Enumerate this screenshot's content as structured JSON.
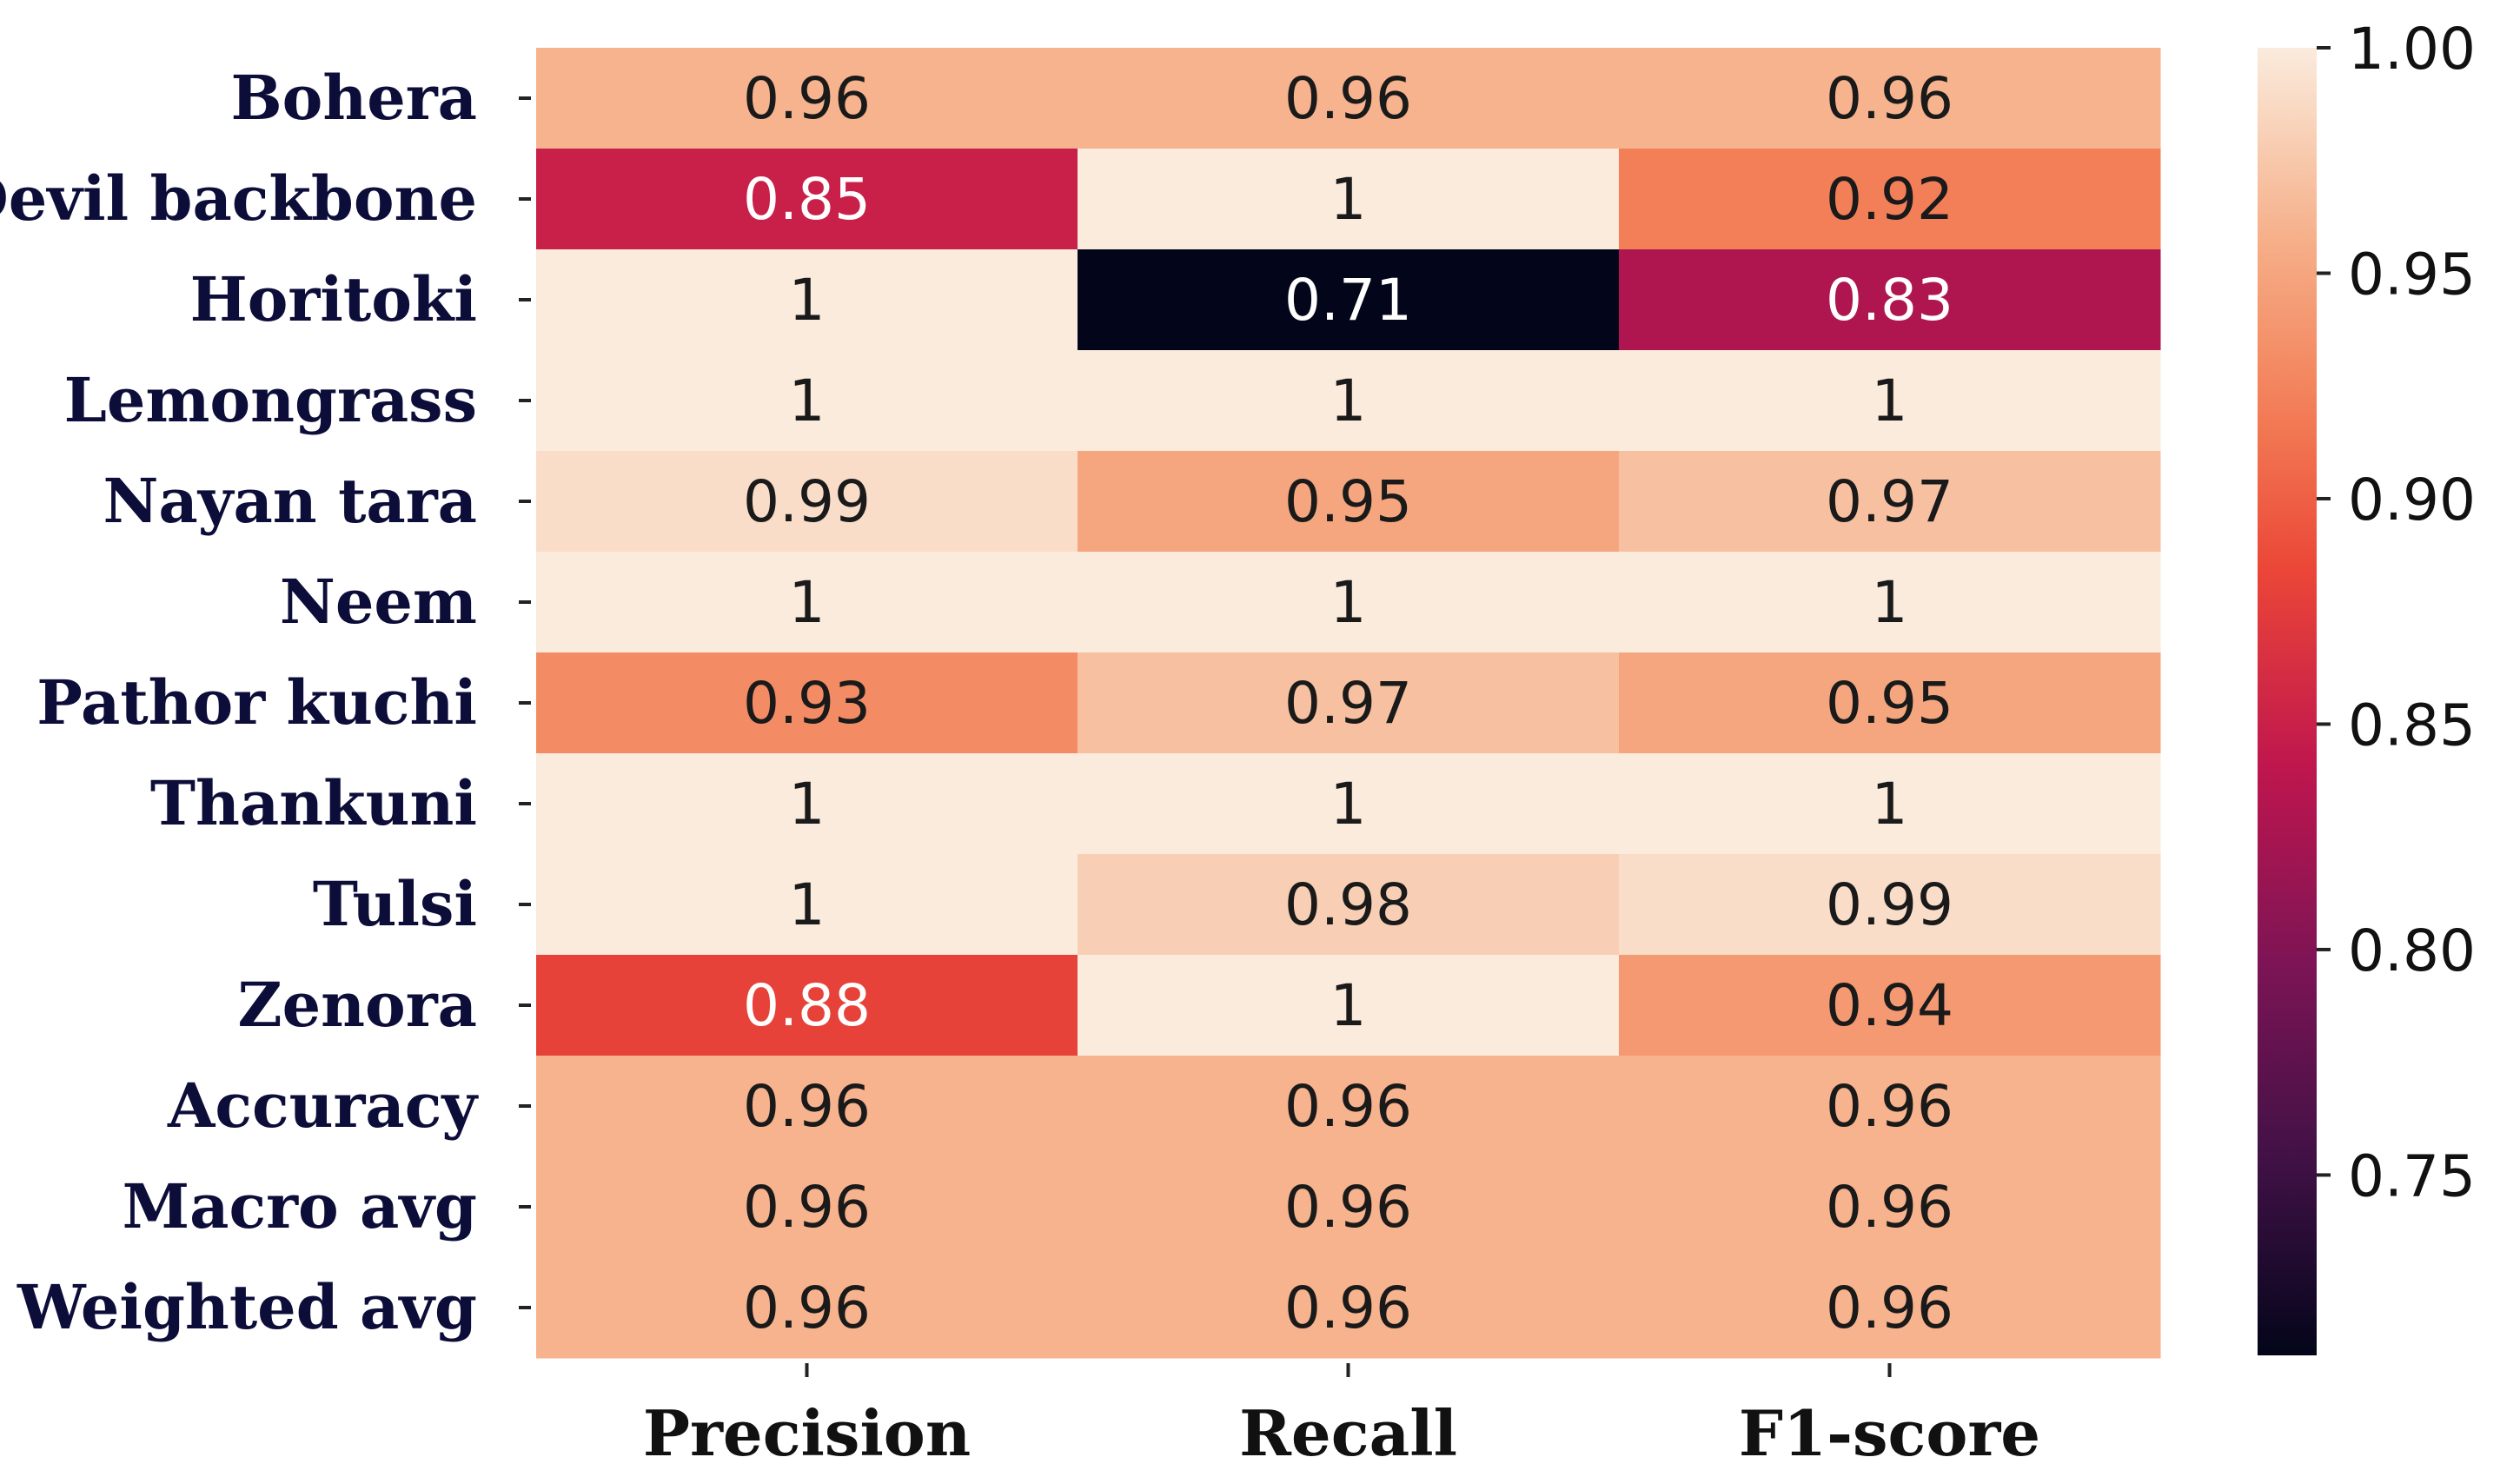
{
  "chart_data": {
    "type": "heatmap",
    "title": "",
    "xlabel": "",
    "ylabel": "",
    "rows": [
      "Bohera",
      "Devil backbone",
      "Horitoki",
      "Lemongrass",
      "Nayan tara",
      "Neem",
      "Pathor kuchi",
      "Thankuni",
      "Tulsi",
      "Zenora",
      "Accuracy",
      "Macro avg",
      "Weighted avg"
    ],
    "columns": [
      "Precision",
      "Recall",
      "F1-score"
    ],
    "values": [
      [
        0.96,
        0.96,
        0.96
      ],
      [
        0.85,
        1,
        0.92
      ],
      [
        1,
        0.71,
        0.83
      ],
      [
        1,
        1,
        1
      ],
      [
        0.99,
        0.95,
        0.97
      ],
      [
        1,
        1,
        1
      ],
      [
        0.93,
        0.97,
        0.95
      ],
      [
        1,
        1,
        1
      ],
      [
        1,
        0.98,
        0.99
      ],
      [
        0.88,
        1,
        0.94
      ],
      [
        0.96,
        0.96,
        0.96
      ],
      [
        0.96,
        0.96,
        0.96
      ],
      [
        0.96,
        0.96,
        0.96
      ]
    ],
    "labels": [
      [
        "0.96",
        "0.96",
        "0.96"
      ],
      [
        "0.85",
        "1",
        "0.92"
      ],
      [
        "1",
        "0.71",
        "0.83"
      ],
      [
        "1",
        "1",
        "1"
      ],
      [
        "0.99",
        "0.95",
        "0.97"
      ],
      [
        "1",
        "1",
        "1"
      ],
      [
        "0.93",
        "0.97",
        "0.95"
      ],
      [
        "1",
        "1",
        "1"
      ],
      [
        "1",
        "0.98",
        "0.99"
      ],
      [
        "0.88",
        "1",
        "0.94"
      ],
      [
        "0.96",
        "0.96",
        "0.96"
      ],
      [
        "0.96",
        "0.96",
        "0.96"
      ],
      [
        "0.96",
        "0.96",
        "0.96"
      ]
    ],
    "colorbar": {
      "range": [
        0.71,
        1.0
      ],
      "ticks": [
        0.75,
        0.8,
        0.85,
        0.9,
        0.95,
        1.0
      ],
      "tick_labels": [
        "0.75",
        "0.80",
        "0.85",
        "0.90",
        "0.95",
        "1.00"
      ],
      "colormap": "rocket"
    }
  }
}
